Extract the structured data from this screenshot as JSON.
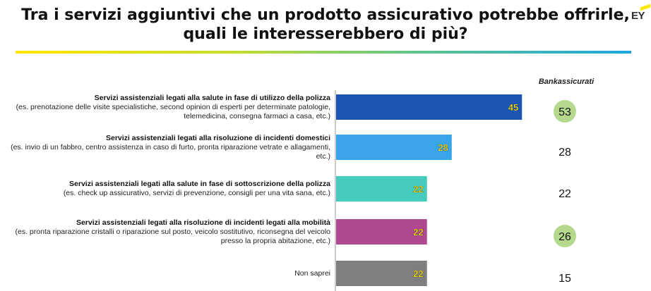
{
  "title": "Tra i servizi aggiuntivi che un prodotto assicurativo potrebbe offrirle, quali le interesserebbero di più?",
  "logo_text": "EY",
  "column_header": "Bankassicurati",
  "colors": {
    "bars": [
      "#1d55b5",
      "#3aa4e8",
      "#46cbbe",
      "#b14892",
      "#7f7f7f"
    ],
    "value_label": "#ffe600",
    "highlight_circle": "#b5d98c",
    "rule": [
      "#ffe600",
      "#1fa6e0"
    ]
  },
  "chart_data": {
    "type": "bar",
    "orientation": "horizontal",
    "categories": [
      {
        "label": "Servizi assistenziali legati alla salute in fase di utilizzo della polizza",
        "note": "(es. prenotazione delle visite specialistiche, second opinion di esperti per determinate patologie, telemedicina, consegna farmaci a casa, etc.)"
      },
      {
        "label": "Servizi assistenziali legati alla risoluzione di incidenti domestici",
        "note": "(es. invio di un fabbro, centro assistenza in caso di furto, pronta riparazione vetrate e allagamenti, etc.)"
      },
      {
        "label": "Servizi assistenziali legati alla salute in fase di sottoscrizione della polizza",
        "note": "(es. check up assicurativo, servizi di prevenzione, consigli per una vita sana, etc.)"
      },
      {
        "label": "Servizi assistenziali legati alla risoluzione di incidenti legati alla mobilità",
        "note": "(es. pronta riparazione cristalli o riparazione sul posto, veicolo sostitutivo, riconsegna del veicolo presso la propria abitazione, etc.)"
      },
      {
        "label": "",
        "note": "Non saprei"
      }
    ],
    "values": [
      45,
      28,
      22,
      22,
      22
    ],
    "bankassicurati": [
      53,
      28,
      22,
      26,
      15
    ],
    "bankassicurati_highlighted": [
      true,
      false,
      false,
      true,
      false
    ],
    "xlim": [
      0,
      60
    ]
  }
}
